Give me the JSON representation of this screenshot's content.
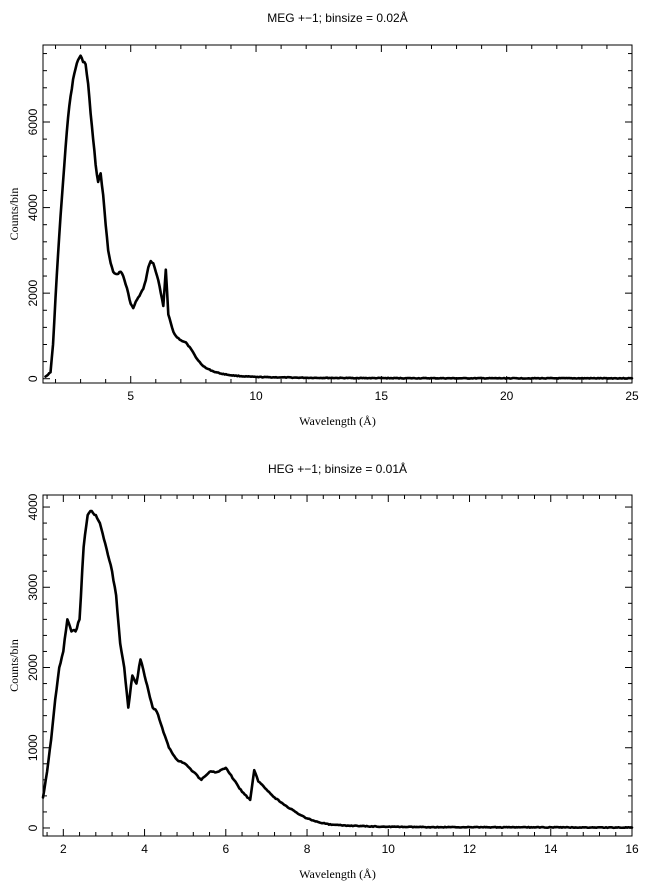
{
  "chart_data": [
    {
      "type": "line",
      "title": "MEG +−1; binsize = 0.02Å",
      "xlabel": "Wavelength (Å)",
      "ylabel": "Counts/bin",
      "xlim": [
        1.5,
        25
      ],
      "ylim": [
        -100,
        7800
      ],
      "xticks": [
        5,
        10,
        15,
        20,
        25
      ],
      "xtick_labels": [
        "5",
        "10",
        "15",
        "20",
        "25"
      ],
      "yticks": [
        0,
        2000,
        4000,
        6000
      ],
      "ytick_labels": [
        "0",
        "2000",
        "4000",
        "6000"
      ],
      "grid": false,
      "series": [
        {
          "x": [
            1.6,
            1.8,
            1.9,
            2.0,
            2.1,
            2.2,
            2.3,
            2.4,
            2.5,
            2.6,
            2.7,
            2.8,
            2.9,
            3.0,
            3.1,
            3.2,
            3.3,
            3.4,
            3.5,
            3.6,
            3.7,
            3.8,
            3.9,
            4.0,
            4.1,
            4.2,
            4.3,
            4.4,
            4.5,
            4.6,
            4.7,
            4.8,
            4.9,
            5.0,
            5.1,
            5.2,
            5.3,
            5.4,
            5.5,
            5.6,
            5.7,
            5.8,
            5.9,
            6.0,
            6.1,
            6.2,
            6.3,
            6.4,
            6.5,
            6.6,
            6.7,
            6.8,
            6.9,
            7.0,
            7.2,
            7.4,
            7.6,
            7.8,
            8.0,
            8.3,
            8.6,
            9.0,
            9.5,
            10.0,
            11.0,
            12.0,
            14.0,
            16.0,
            18.0,
            20.0,
            22.0,
            25.0
          ],
          "y": [
            50,
            150,
            800,
            1900,
            2900,
            3800,
            4600,
            5400,
            6100,
            6600,
            7000,
            7250,
            7450,
            7550,
            7400,
            7350,
            6900,
            6200,
            5600,
            5000,
            4600,
            4800,
            4300,
            3600,
            3000,
            2700,
            2500,
            2450,
            2450,
            2500,
            2400,
            2200,
            2000,
            1750,
            1650,
            1800,
            1900,
            2000,
            2100,
            2300,
            2600,
            2750,
            2700,
            2500,
            2300,
            2000,
            1700,
            2550,
            1500,
            1300,
            1100,
            1000,
            950,
            900,
            850,
            700,
            500,
            350,
            250,
            170,
            120,
            80,
            55,
            40,
            30,
            22,
            15,
            12,
            10,
            10,
            10,
            10
          ]
        }
      ]
    },
    {
      "type": "line",
      "title": "HEG +−1; binsize = 0.01Å",
      "xlabel": "Wavelength (Å)",
      "ylabel": "Counts/bin",
      "xlim": [
        1.5,
        16
      ],
      "ylim": [
        -100,
        4150
      ],
      "xticks": [
        2,
        4,
        6,
        8,
        10,
        12,
        14,
        16
      ],
      "xtick_labels": [
        "2",
        "4",
        "6",
        "8",
        "10",
        "12",
        "14",
        "16"
      ],
      "yticks": [
        0,
        1000,
        2000,
        3000,
        4000
      ],
      "ytick_labels": [
        "0",
        "1000",
        "2000",
        "3000",
        "4000"
      ],
      "grid": false,
      "series": [
        {
          "x": [
            1.5,
            1.6,
            1.7,
            1.8,
            1.9,
            2.0,
            2.1,
            2.2,
            2.3,
            2.4,
            2.5,
            2.6,
            2.7,
            2.8,
            2.9,
            3.0,
            3.1,
            3.2,
            3.3,
            3.4,
            3.5,
            3.6,
            3.7,
            3.8,
            3.9,
            4.0,
            4.1,
            4.2,
            4.3,
            4.4,
            4.5,
            4.6,
            4.8,
            5.0,
            5.2,
            5.4,
            5.6,
            5.8,
            6.0,
            6.2,
            6.4,
            6.6,
            6.7,
            6.8,
            7.0,
            7.2,
            7.5,
            7.8,
            8.0,
            8.3,
            8.6,
            9.0,
            9.5,
            10.0,
            11.0,
            12.0,
            13.0,
            14.0,
            15.0,
            16.0
          ],
          "y": [
            380,
            700,
            1100,
            1600,
            2000,
            2200,
            2600,
            2450,
            2450,
            2600,
            3500,
            3900,
            3950,
            3900,
            3800,
            3600,
            3400,
            3200,
            2900,
            2300,
            2000,
            1500,
            1900,
            1800,
            2100,
            1900,
            1700,
            1500,
            1450,
            1300,
            1150,
            1000,
            850,
            800,
            700,
            600,
            700,
            700,
            750,
            600,
            450,
            350,
            720,
            580,
            480,
            380,
            270,
            170,
            120,
            70,
            40,
            30,
            20,
            15,
            10,
            10,
            8,
            8,
            6,
            5
          ]
        }
      ]
    }
  ]
}
